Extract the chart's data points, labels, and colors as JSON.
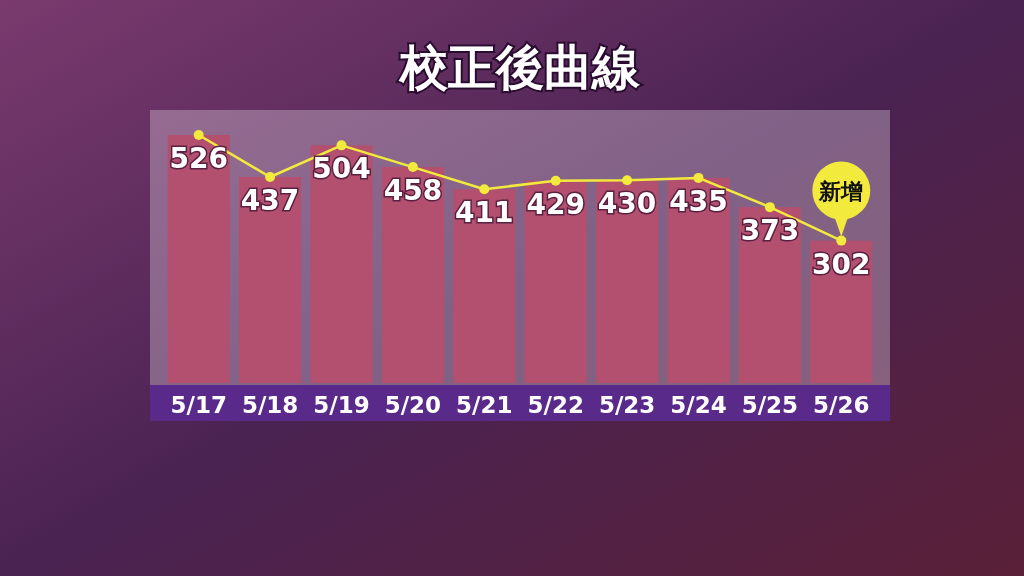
{
  "chart_data": {
    "type": "bar",
    "title": "校正後曲線",
    "categories": [
      "5/17",
      "5/18",
      "5/19",
      "5/20",
      "5/21",
      "5/22",
      "5/23",
      "5/24",
      "5/25",
      "5/26"
    ],
    "series": [
      {
        "type": "bar",
        "color": "#b3506f",
        "values": [
          526,
          437,
          504,
          458,
          411,
          429,
          430,
          435,
          373,
          302
        ],
        "value_labels": [
          "526",
          "437",
          "504",
          "458",
          "411",
          "429",
          "430",
          "435",
          "373",
          "302"
        ]
      },
      {
        "type": "line",
        "color": "#f2ea3c",
        "values": [
          526,
          437,
          504,
          458,
          411,
          429,
          430,
          435,
          373,
          302
        ]
      }
    ],
    "marker": "circle",
    "line_style": "solid",
    "annotations": [
      {
        "text": "新增",
        "x": "5/26",
        "y": 302
      }
    ]
  }
}
